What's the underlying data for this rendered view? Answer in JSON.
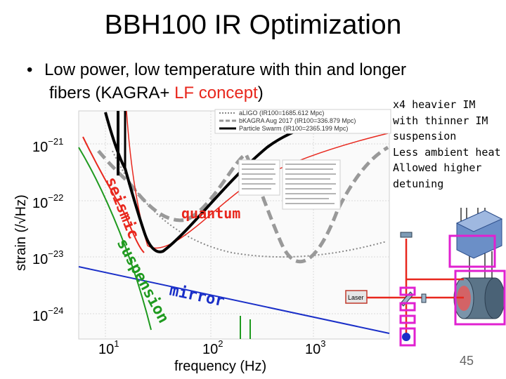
{
  "slide": {
    "title": "BBH100 IR Optimization",
    "bullet_marker": "•",
    "bullet_line1": "Low power, low temperature with thin and longer",
    "bullet_line2_prefix": "fibers (KAGRA+ ",
    "bullet_line2_highlight": "LF concept",
    "bullet_line2_suffix": ")",
    "side_note": [
      "x4 heavier IM",
      "with thinner IM",
      "suspension",
      "Less ambient heat",
      "Allowed higher",
      "detuning"
    ],
    "page_number": "45"
  },
  "plot": {
    "xlabel": "frequency (Hz)",
    "ylabel": "strain (/√Hz)",
    "x_ticks": [
      {
        "base": "10",
        "exp": "1"
      },
      {
        "base": "10",
        "exp": "2"
      },
      {
        "base": "10",
        "exp": "3"
      }
    ],
    "y_ticks": [
      {
        "base": "10",
        "exp": "−21"
      },
      {
        "base": "10",
        "exp": "−22"
      },
      {
        "base": "10",
        "exp": "−23"
      },
      {
        "base": "10",
        "exp": "−24"
      }
    ],
    "legend": [
      {
        "label": "aLIGO (IR100=1685.612 Mpc)",
        "style": "dotted"
      },
      {
        "label": "bKAGRA Aug 2017 (IR100=336.879 Mpc)",
        "style": "dashed"
      },
      {
        "label": "Particle Swarm (IR100=2365.199 Mpc)",
        "style": "solid"
      }
    ],
    "curve_labels": {
      "seismic": "seismic",
      "suspension": "suspension",
      "quantum": "quantum",
      "mirror": "mirror"
    },
    "colors": {
      "seismic": "#e8271d",
      "suspension": "#1f9a1f",
      "mirror": "#1a2fc8",
      "quantum": "#e8271d",
      "total": "#000000",
      "bkagra": "#999999",
      "aligo": "#888888"
    }
  },
  "apparatus": {
    "laser_label": "Laser",
    "highlight_color": "#e020d0",
    "beam_color": "#e8271d"
  }
}
